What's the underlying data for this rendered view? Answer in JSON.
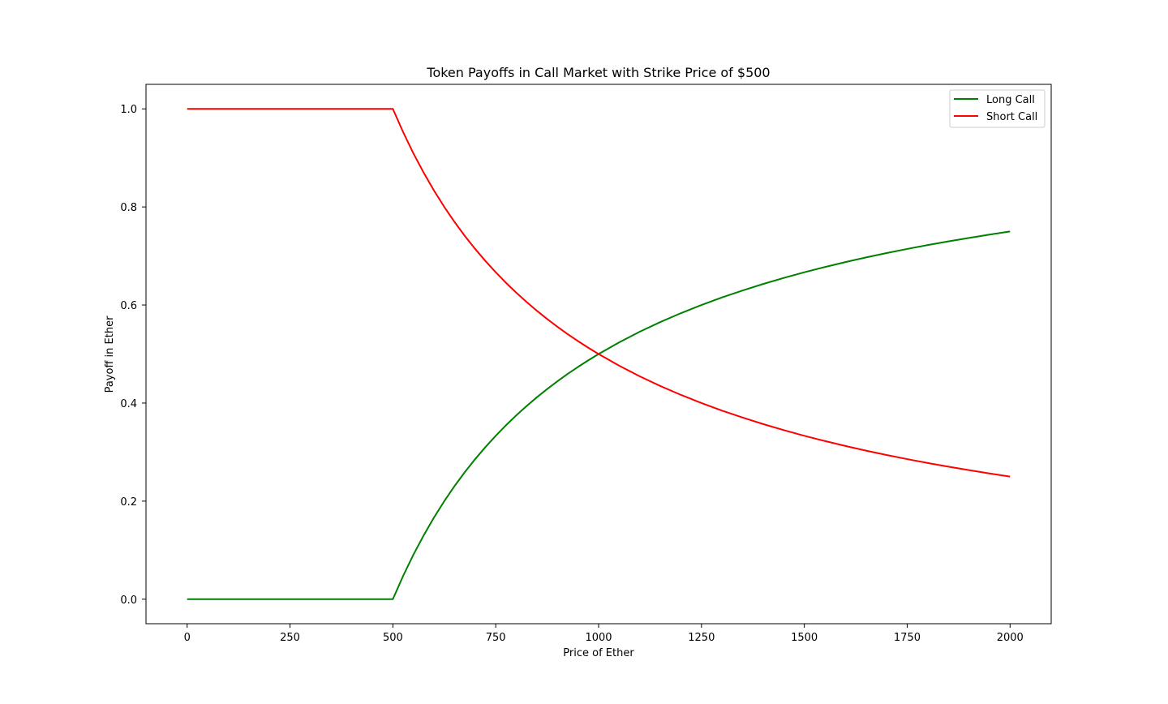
{
  "chart_data": {
    "type": "line",
    "title": "Token Payoffs in Call Market with Strike Price of $500",
    "xlabel": "Price of Ether",
    "ylabel": "Payoff in Ether",
    "xlim": [
      -100,
      2100
    ],
    "ylim": [
      -0.05,
      1.05
    ],
    "xticks": [
      0,
      250,
      500,
      750,
      1000,
      1250,
      1500,
      1750,
      2000
    ],
    "xtick_labels": [
      "0",
      "250",
      "500",
      "750",
      "1000",
      "1250",
      "1500",
      "1750",
      "2000"
    ],
    "yticks": [
      0.0,
      0.2,
      0.4,
      0.6,
      0.8,
      1.0
    ],
    "ytick_labels": [
      "0.0",
      "0.2",
      "0.4",
      "0.6",
      "0.8",
      "1.0"
    ],
    "grid": false,
    "legend_position": "upper right",
    "x": [
      0,
      100,
      200,
      300,
      400,
      500,
      525,
      550,
      575,
      600,
      625,
      650,
      675,
      700,
      725,
      750,
      775,
      800,
      825,
      850,
      875,
      900,
      925,
      950,
      975,
      1000,
      1050,
      1100,
      1150,
      1200,
      1250,
      1300,
      1350,
      1400,
      1450,
      1500,
      1550,
      1600,
      1650,
      1700,
      1750,
      1800,
      1850,
      1900,
      1950,
      2000
    ],
    "series": [
      {
        "name": "Long Call",
        "color": "#008000",
        "values": [
          0,
          0,
          0,
          0,
          0,
          0,
          0.0476,
          0.0909,
          0.1304,
          0.1667,
          0.2,
          0.2308,
          0.2593,
          0.2857,
          0.3103,
          0.3333,
          0.3548,
          0.375,
          0.3939,
          0.4118,
          0.4286,
          0.4444,
          0.4595,
          0.4737,
          0.4872,
          0.5,
          0.5238,
          0.5455,
          0.5652,
          0.5833,
          0.6,
          0.6154,
          0.6296,
          0.6429,
          0.6552,
          0.6667,
          0.6774,
          0.6875,
          0.697,
          0.7059,
          0.7143,
          0.7222,
          0.7297,
          0.7368,
          0.7436,
          0.75
        ]
      },
      {
        "name": "Short Call",
        "color": "#ff0000",
        "values": [
          1,
          1,
          1,
          1,
          1,
          1,
          0.9524,
          0.9091,
          0.8696,
          0.8333,
          0.8,
          0.7692,
          0.7407,
          0.7143,
          0.6897,
          0.6667,
          0.6452,
          0.625,
          0.6061,
          0.5882,
          0.5714,
          0.5556,
          0.5405,
          0.5263,
          0.5128,
          0.5,
          0.4762,
          0.4545,
          0.4348,
          0.4167,
          0.4,
          0.3846,
          0.3704,
          0.3571,
          0.3448,
          0.3333,
          0.3226,
          0.3125,
          0.303,
          0.2941,
          0.2857,
          0.2778,
          0.2703,
          0.2632,
          0.2564,
          0.25
        ]
      }
    ]
  }
}
